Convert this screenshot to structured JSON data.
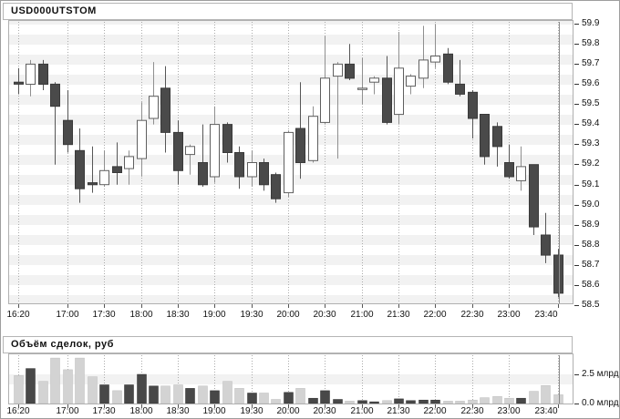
{
  "window": {
    "title": "USD000UTSTOM"
  },
  "volume_panel": {
    "title": "Объём сделок, руб"
  },
  "colors": {
    "up_fill": "#ffffff",
    "up_stroke": "#5f5f5f",
    "up_wick": "#8f8f8f",
    "down_fill": "#4a4a4a",
    "down_stroke": "#3a3a3a",
    "down_wick": "#565656",
    "vol_up": "#484848",
    "vol_down": "#d3d3d3",
    "stripe": "#f2f2f2",
    "grid": "#ababab",
    "border": "#b0b0b0",
    "cursor": "#8c8c8c",
    "text": "#111111"
  },
  "chart_data": [
    {
      "type": "candlestick",
      "title": "USD000UTSTOM",
      "interval": "10min",
      "x": [
        "16:20",
        "16:30",
        "16:40",
        "16:50",
        "17:00",
        "17:10",
        "17:20",
        "17:30",
        "17:40",
        "17:50",
        "18:00",
        "18:10",
        "18:20",
        "18:30",
        "18:40",
        "18:50",
        "19:00",
        "19:10",
        "19:20",
        "19:30",
        "19:40",
        "19:50",
        "20:00",
        "20:10",
        "20:20",
        "20:30",
        "20:40",
        "20:50",
        "21:00",
        "21:10",
        "21:20",
        "21:30",
        "21:40",
        "21:50",
        "22:00",
        "22:10",
        "22:20",
        "22:30",
        "22:40",
        "22:50",
        "23:00",
        "23:10",
        "23:20",
        "23:30",
        "23:40"
      ],
      "open": [
        59.6,
        59.59,
        59.69,
        59.59,
        59.41,
        59.26,
        59.1,
        59.09,
        59.18,
        59.17,
        59.22,
        59.42,
        59.57,
        59.35,
        59.24,
        59.2,
        59.13,
        59.39,
        59.25,
        59.13,
        59.2,
        59.14,
        59.05,
        59.37,
        59.21,
        59.4,
        59.63,
        59.69,
        59.57,
        59.6,
        59.62,
        59.44,
        59.58,
        59.62,
        59.7,
        59.74,
        59.59,
        59.55,
        59.44,
        59.38,
        59.2,
        59.11,
        59.19,
        58.84,
        58.74
      ],
      "high": [
        59.67,
        59.71,
        59.71,
        59.6,
        59.56,
        59.37,
        59.28,
        59.26,
        59.3,
        59.26,
        59.5,
        59.7,
        59.68,
        59.41,
        59.29,
        59.39,
        59.48,
        59.4,
        59.28,
        59.26,
        59.22,
        59.15,
        59.36,
        59.6,
        59.48,
        59.83,
        59.7,
        59.79,
        59.72,
        59.63,
        59.73,
        59.85,
        59.64,
        59.88,
        59.89,
        59.77,
        59.71,
        59.56,
        59.44,
        59.4,
        59.29,
        59.28,
        59.19,
        58.95,
        58.77
      ],
      "low": [
        59.54,
        59.53,
        59.56,
        59.19,
        59.25,
        59.0,
        59.05,
        59.08,
        59.09,
        59.09,
        59.13,
        59.39,
        59.25,
        59.09,
        59.14,
        59.08,
        59.1,
        59.2,
        59.07,
        59.08,
        59.06,
        59.0,
        59.03,
        59.12,
        59.2,
        59.39,
        59.22,
        59.61,
        59.49,
        59.54,
        59.39,
        59.39,
        59.54,
        59.57,
        59.67,
        59.59,
        59.53,
        59.32,
        59.19,
        59.18,
        59.12,
        59.06,
        58.84,
        58.7,
        58.53
      ],
      "close": [
        59.59,
        59.69,
        59.59,
        59.48,
        59.29,
        59.07,
        59.09,
        59.16,
        59.15,
        59.23,
        59.41,
        59.53,
        59.35,
        59.16,
        59.28,
        59.09,
        59.39,
        59.25,
        59.13,
        59.2,
        59.09,
        59.02,
        59.35,
        59.2,
        59.43,
        59.62,
        59.69,
        59.62,
        59.57,
        59.62,
        59.4,
        59.67,
        59.63,
        59.71,
        59.73,
        59.6,
        59.54,
        59.42,
        59.23,
        59.28,
        59.13,
        59.18,
        58.88,
        58.74,
        58.55
      ],
      "ylim": [
        58.5,
        59.9
      ],
      "y_ticks": [
        "59.9",
        "59.8",
        "59.7",
        "59.6",
        "59.5",
        "59.4",
        "59.3",
        "59.2",
        "59.1",
        "59.0",
        "58.9",
        "58.8",
        "58.7",
        "58.6",
        "58.5"
      ],
      "x_tick_labels": [
        "16:20",
        "17:00",
        "17:30",
        "18:00",
        "18:30",
        "19:00",
        "19:30",
        "20:00",
        "20:30",
        "21:00",
        "21:30",
        "22:00",
        "22:30",
        "23:00",
        "23:40"
      ],
      "x_tick_indices": [
        0,
        4,
        7,
        10,
        13,
        16,
        19,
        22,
        25,
        28,
        31,
        34,
        37,
        40,
        44
      ],
      "cursor_index": 44,
      "grid": "vertical-dotted",
      "legend": "none"
    },
    {
      "type": "bar",
      "title": "Объём сделок, руб",
      "unit": "млрд",
      "categories": [
        "16:20",
        "16:30",
        "16:40",
        "16:50",
        "17:00",
        "17:10",
        "17:20",
        "17:30",
        "17:40",
        "17:50",
        "18:00",
        "18:10",
        "18:20",
        "18:30",
        "18:40",
        "18:50",
        "19:00",
        "19:10",
        "19:20",
        "19:30",
        "19:40",
        "19:50",
        "20:00",
        "20:10",
        "20:20",
        "20:30",
        "20:40",
        "20:50",
        "21:00",
        "21:10",
        "21:20",
        "21:30",
        "21:40",
        "21:50",
        "22:00",
        "22:10",
        "22:20",
        "22:30",
        "22:40",
        "22:50",
        "23:00",
        "23:10",
        "23:20",
        "23:30",
        "23:40"
      ],
      "values": [
        2.4,
        3.0,
        1.9,
        3.9,
        2.9,
        3.9,
        2.3,
        1.6,
        1.1,
        1.6,
        2.5,
        1.5,
        1.5,
        1.6,
        1.3,
        1.5,
        1.1,
        1.9,
        1.3,
        0.9,
        0.9,
        0.35,
        0.95,
        1.3,
        0.45,
        1.1,
        0.35,
        0.2,
        0.25,
        0.15,
        0.25,
        0.4,
        0.25,
        0.3,
        0.3,
        0.2,
        0.2,
        0.3,
        0.5,
        0.6,
        0.45,
        0.45,
        1.05,
        1.55,
        0.75
      ],
      "ylim": [
        0,
        4.1
      ],
      "y_ticks": [
        {
          "value": 2.5,
          "label": "2.5 млрд"
        },
        {
          "value": 0.0,
          "label": "0.0 млрд"
        }
      ],
      "color_rule": "bar is dark when candle closes up, light when candle closes down"
    }
  ]
}
